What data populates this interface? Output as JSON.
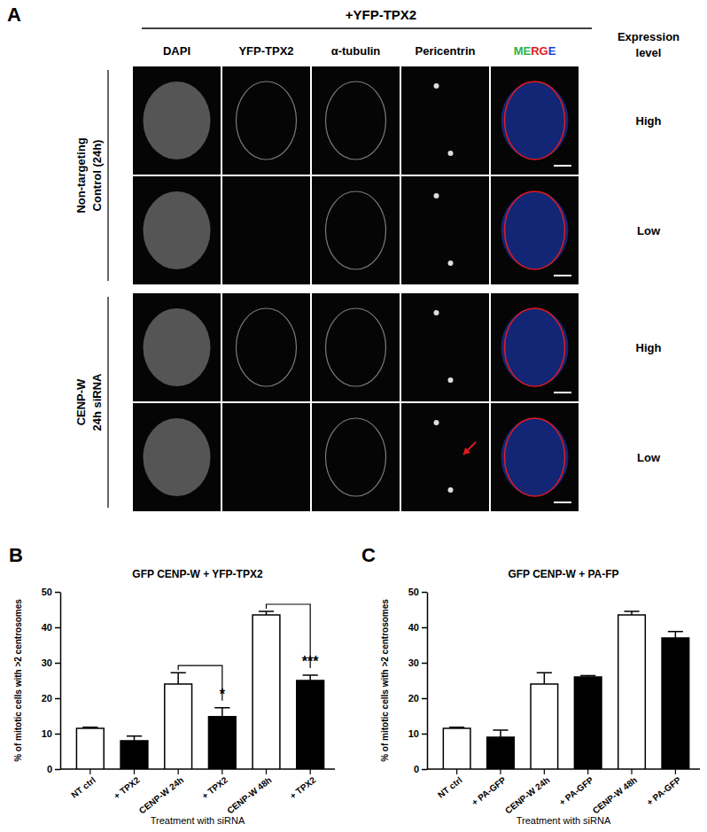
{
  "panel_a": {
    "label": "A",
    "title": "+YFP-TPX2",
    "columns": [
      "DAPI",
      "YFP-TPX2",
      "α-tubulin",
      "Pericentrin",
      "MERGE"
    ],
    "side_header": "Expression level",
    "groups": [
      {
        "label": "Non-targeting Control (24h)",
        "rows": [
          "High",
          "Low"
        ]
      },
      {
        "label": "CENP-W 24h siRNA",
        "rows": [
          "High",
          "Low"
        ]
      }
    ]
  },
  "chart_data": [
    {
      "type": "bar",
      "panel_label": "B",
      "title": "GFP CENP-W + YFP-TPX2",
      "x_label": "Treatment with siRNA",
      "y_label": "% of mitotic cells with >2 centrosomes",
      "categories": [
        "NT ctrl",
        "+ TPX2",
        "CENP-W 24h",
        "+ TPX2",
        "CENP-W 48h",
        "+ TPX2"
      ],
      "values": [
        11.5,
        8,
        24,
        14.8,
        43.5,
        25
      ],
      "errors": [
        0.3,
        1.3,
        3.2,
        2.5,
        1,
        1.5
      ],
      "colors": [
        "#ffffff",
        "#000000",
        "#ffffff",
        "#000000",
        "#ffffff",
        "#000000"
      ],
      "ylim": [
        0,
        50
      ],
      "yticks": [
        0,
        10,
        20,
        30,
        40,
        50
      ],
      "annotations": [
        {
          "text": "*",
          "between": [
            2,
            3
          ]
        },
        {
          "text": "***",
          "between": [
            4,
            5
          ]
        }
      ]
    },
    {
      "type": "bar",
      "panel_label": "C",
      "title": "GFP CENP-W + PA-FP",
      "x_label": "Treatment with siRNA",
      "y_label": "% of mitotic cells with >2 centrosomes",
      "categories": [
        "NT ctrl",
        "+ PA-GFP",
        "CENP-W 24h",
        "+ PA-GFP",
        "CENP-W 48h",
        "+ PA-GFP"
      ],
      "values": [
        11.5,
        9,
        24,
        26,
        43.5,
        37
      ],
      "errors": [
        0.3,
        2,
        3.2,
        0.4,
        1,
        1.8
      ],
      "colors": [
        "#ffffff",
        "#000000",
        "#ffffff",
        "#000000",
        "#ffffff",
        "#000000"
      ],
      "ylim": [
        0,
        50
      ],
      "yticks": [
        0,
        10,
        20,
        30,
        40,
        50
      ]
    }
  ]
}
